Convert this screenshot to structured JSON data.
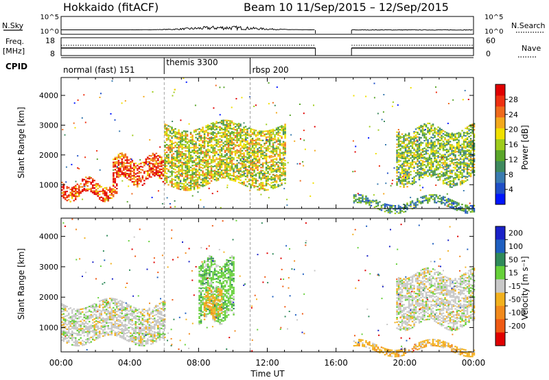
{
  "header": {
    "station": "Hokkaido (fitACF)",
    "beam_date": "Beam 10  11/Sep/2015 – 12/Sep/2015"
  },
  "top_panels": {
    "nsky_label": "N.Sky",
    "nsky_ticks": [
      "10^5",
      "10^0"
    ],
    "nsearch_label": "N.Search",
    "nsearch_ticks": [
      "10^5",
      "10^0"
    ],
    "freq_label": "Freq.",
    "freq_unit": "[MHz]",
    "freq_ticks": [
      "18",
      "8"
    ],
    "nave_label": "Nave",
    "nave_ticks": [
      "60",
      "0"
    ],
    "cpid_label": "CPID",
    "cpid_modes": [
      {
        "label": "normal (fast) 151",
        "start": 0,
        "end": 6
      },
      {
        "label": "themis 3300",
        "start": 6,
        "end": 11
      },
      {
        "label": "rbsp 200",
        "start": 11,
        "end": 24
      }
    ]
  },
  "chart_data": [
    {
      "type": "heatmap",
      "name": "power",
      "xlabel": "Time UT",
      "ylabel": "Slant Range [km]",
      "xlim": [
        0,
        24
      ],
      "ylim": [
        200,
        4600
      ],
      "y_ticks": [
        1000,
        2000,
        3000,
        4000
      ],
      "colorbar": {
        "label": "Power [dB]",
        "ticks": [
          "4",
          "8",
          "12",
          "16",
          "20",
          "24",
          "28"
        ],
        "colors": [
          "#0016ff",
          "#1f4fc7",
          "#3a7bb0",
          "#3f8a5e",
          "#5aa62a",
          "#9fcc1c",
          "#f0e000",
          "#f3a91c",
          "#ef6a1c",
          "#ee3011",
          "#e00000"
        ]
      },
      "data_gap_hours": [
        14.8,
        16.9
      ],
      "features": [
        {
          "t0": 0.0,
          "t1": 3.2,
          "r0": 600,
          "r1": 1100,
          "level": "high"
        },
        {
          "t0": 3.0,
          "t1": 6.0,
          "r0": 1100,
          "r1": 1900,
          "level": "high"
        },
        {
          "t0": 6.0,
          "t1": 13.0,
          "r0": 1000,
          "r1": 3000,
          "level": "mixed"
        },
        {
          "t0": 17.0,
          "t1": 24.0,
          "r0": 200,
          "r1": 500,
          "level": "low"
        },
        {
          "t0": 19.5,
          "t1": 24.0,
          "r0": 1100,
          "r1": 2900,
          "level": "mid"
        }
      ]
    },
    {
      "type": "heatmap",
      "name": "velocity",
      "xlabel": "Time UT",
      "ylabel": "Slant Range [km]",
      "xlim": [
        0,
        24
      ],
      "ylim": [
        200,
        4600
      ],
      "y_ticks": [
        1000,
        2000,
        3000,
        4000
      ],
      "x_ticks": [
        "00:00",
        "04:00",
        "08:00",
        "12:00",
        "16:00",
        "20:00",
        "00:00"
      ],
      "colorbar": {
        "label": "Velocity [m s⁻¹]",
        "ticks": [
          "200",
          "100",
          "50",
          "15",
          "-15",
          "-50",
          "-100",
          "-200"
        ],
        "colors": [
          "#1a22c8",
          "#1f5fc0",
          "#2f8a5a",
          "#66d03a",
          "#c8c8c8",
          "#f2b11e",
          "#f28a1c",
          "#ef5a14",
          "#e00000"
        ]
      },
      "data_gap_hours": [
        14.8,
        16.9
      ],
      "features": [
        {
          "t0": 0.0,
          "t1": 6.0,
          "r0": 600,
          "r1": 1800,
          "level": "ground"
        },
        {
          "t0": 8.0,
          "t1": 10.0,
          "r0": 1300,
          "r1": 3200,
          "level": "positive"
        },
        {
          "t0": 8.3,
          "t1": 9.3,
          "r0": 1400,
          "r1": 2200,
          "level": "negative"
        },
        {
          "t0": 17.0,
          "t1": 24.0,
          "r0": 250,
          "r1": 450,
          "level": "negative"
        },
        {
          "t0": 19.5,
          "t1": 24.0,
          "r0": 1100,
          "r1": 2800,
          "level": "ground"
        }
      ]
    }
  ]
}
